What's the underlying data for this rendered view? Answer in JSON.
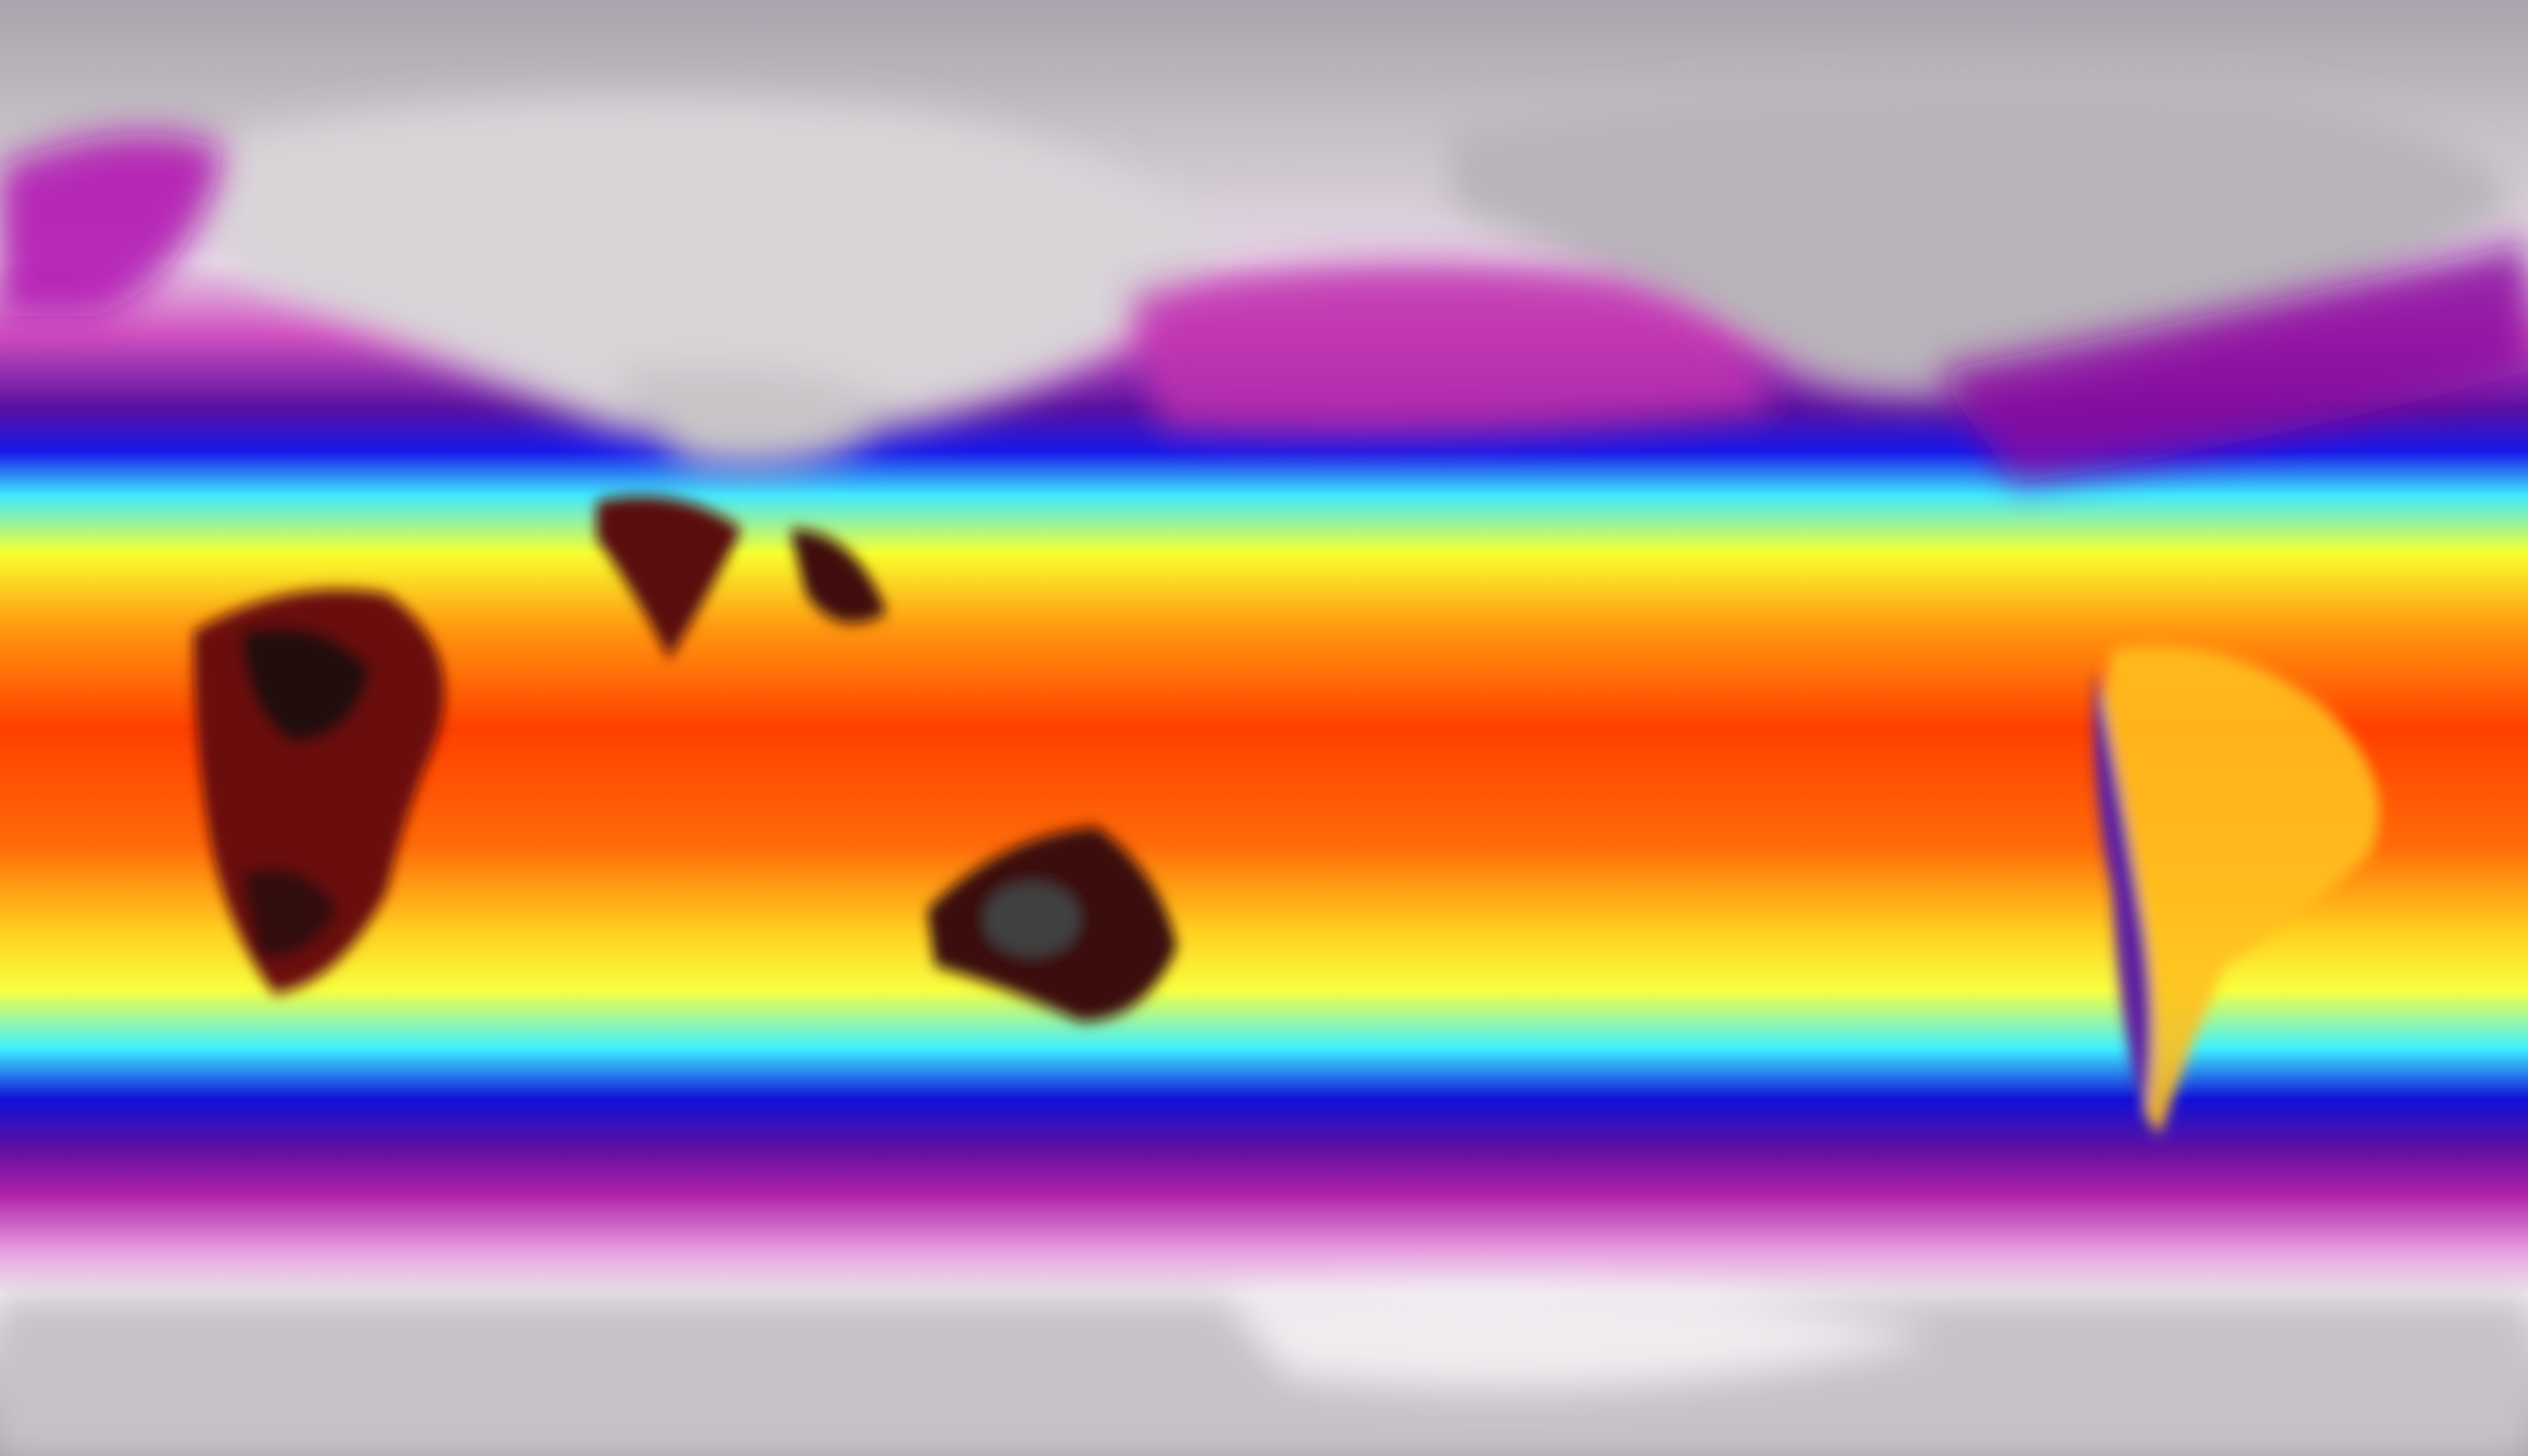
{
  "map": {
    "projection": "equirectangular",
    "colormap": {
      "coldest": "#8f8a94",
      "cold": "#f2eef2",
      "cool_magenta": "#c020b0",
      "purple": "#6a10a8",
      "blue": "#1010e0",
      "cyan": "#40f0ff",
      "yellow": "#ffff20",
      "orange": "#ff9010",
      "red": "#ff3000",
      "hottest": "#200808"
    }
  }
}
